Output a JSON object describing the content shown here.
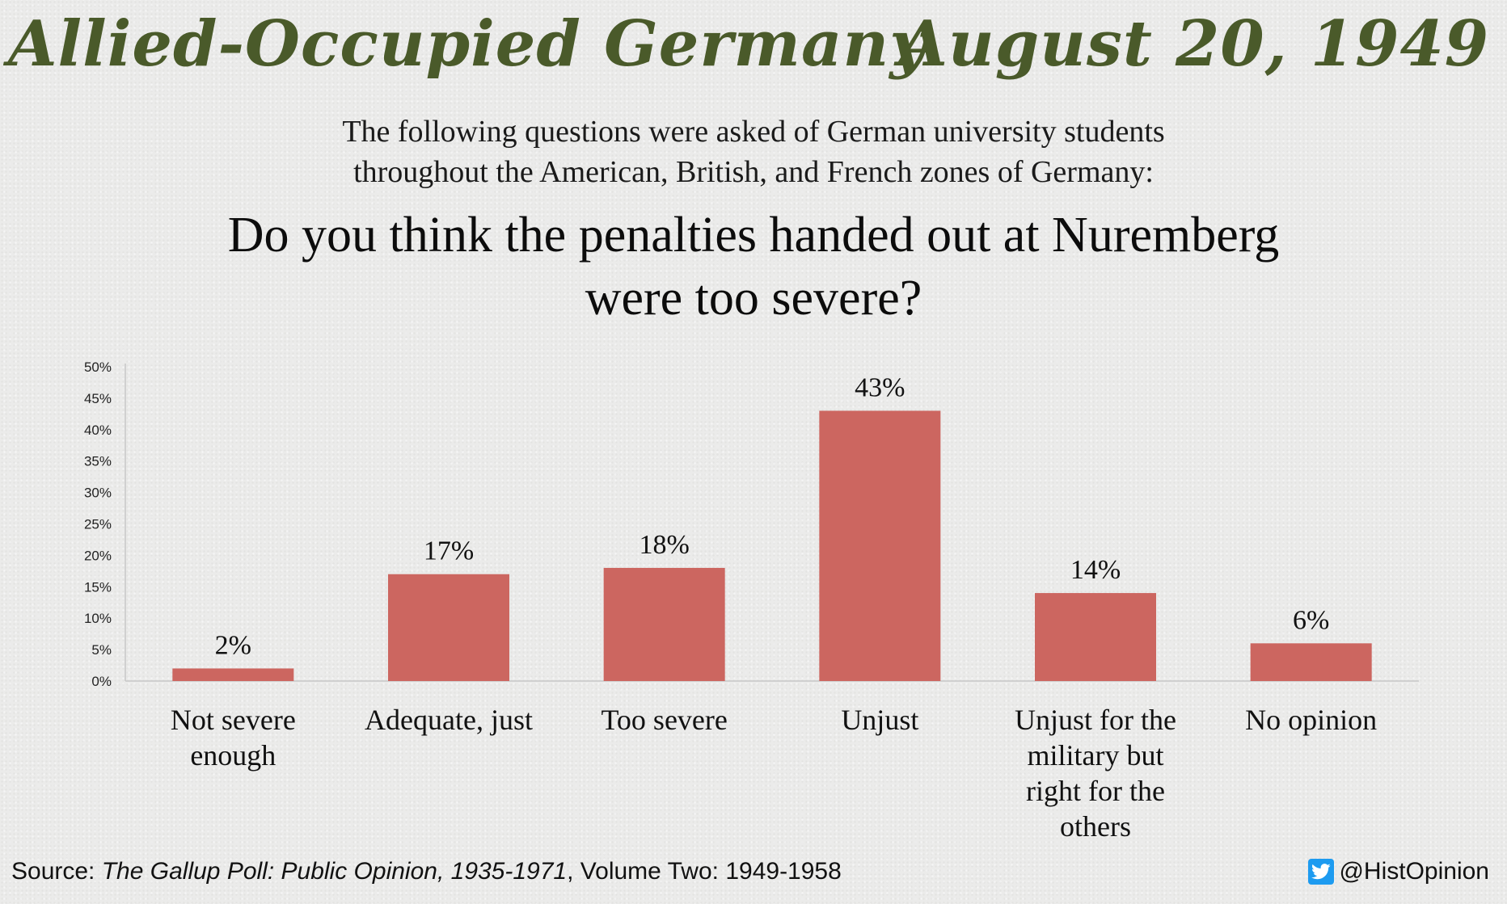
{
  "header": {
    "left_title": "Allied-Occupied Germany",
    "right_date": "August 20, 1949"
  },
  "intro": {
    "line1": "The following questions were asked of German university students",
    "line2": "throughout the American, British, and French zones of Germany:"
  },
  "question": {
    "line1": "Do you think the penalties handed out at Nuremberg",
    "line2": "were too severe?"
  },
  "chart_data": {
    "type": "bar",
    "categories": [
      "Not severe enough",
      "Adequate, just",
      "Too severe",
      "Unjust",
      "Unjust for the military but right for the others",
      "No opinion"
    ],
    "category_lines": [
      [
        "Not severe",
        "enough"
      ],
      [
        "Adequate, just"
      ],
      [
        "Too severe"
      ],
      [
        "Unjust"
      ],
      [
        "Unjust for the",
        "military but",
        "right for the",
        "others"
      ],
      [
        "No opinion"
      ]
    ],
    "values": [
      2,
      17,
      18,
      43,
      14,
      6
    ],
    "data_labels": [
      "2%",
      "17%",
      "18%",
      "43%",
      "14%",
      "6%"
    ],
    "ylim": [
      0,
      50
    ],
    "yticks": [
      0,
      5,
      10,
      15,
      20,
      25,
      30,
      35,
      40,
      45,
      50
    ],
    "ytick_labels": [
      "0%",
      "5%",
      "10%",
      "15%",
      "20%",
      "25%",
      "30%",
      "35%",
      "40%",
      "45%",
      "50%"
    ],
    "bar_color": "#cc6660",
    "grid": false,
    "legend": "none"
  },
  "footer": {
    "source_prefix": "Source: ",
    "source_title": "The Gallup Poll: Public Opinion, 1935-1971",
    "source_suffix": ", Volume Two: 1949-1958",
    "handle": "@HistOpinion",
    "handle_icon": "twitter-bird-icon",
    "twitter_color": "#1d9bf0"
  }
}
